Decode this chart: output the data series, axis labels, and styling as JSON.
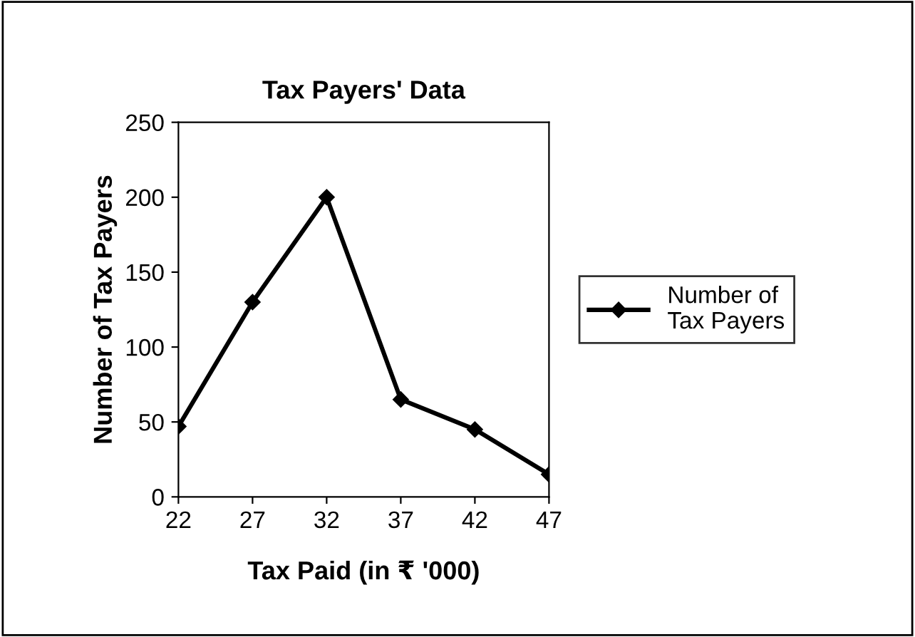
{
  "chart_data": {
    "type": "line",
    "title": "Tax Payers' Data",
    "xlabel": "Tax Paid (in ₹ '000)",
    "ylabel": "Number of Tax Payers",
    "x": [
      22,
      27,
      32,
      37,
      42,
      47
    ],
    "series": [
      {
        "name": "Number of\nTax Payers",
        "color": "#000000",
        "values": [
          47,
          130,
          200,
          65,
          45,
          15
        ]
      }
    ],
    "xlim": [
      22,
      47
    ],
    "xticks": [
      22,
      27,
      32,
      37,
      42,
      47
    ],
    "ylim": [
      0,
      250
    ],
    "yticks": [
      0,
      50,
      100,
      150,
      200,
      250
    ],
    "grid": false,
    "legend": "right",
    "marker": "diamond",
    "line_style": "solid"
  }
}
